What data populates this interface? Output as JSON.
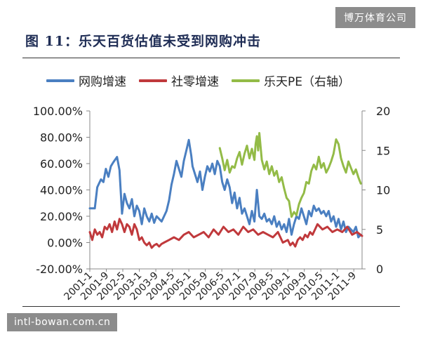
{
  "watermark_top": "博万体育公司",
  "watermark_bottom": "intl-bowan.com.cn",
  "figure_title": "图 11：乐天百货估值未受到网购冲击",
  "chart_data": {
    "type": "line",
    "title": "",
    "legend": [
      {
        "name": "网购增速",
        "color": "#4a7fc1",
        "axis": "left"
      },
      {
        "name": "社零增速",
        "color": "#c0393c",
        "axis": "left"
      },
      {
        "name": "乐天PE（右轴）",
        "color": "#93bb47",
        "axis": "right"
      }
    ],
    "legend_position": "top",
    "grid": false,
    "left_axis": {
      "min": -0.2,
      "max": 1.0,
      "ticks": [
        -0.2,
        0,
        0.2,
        0.4,
        0.6,
        0.8,
        1.0
      ],
      "tick_labels": [
        "-20.00%",
        "0.00%",
        "20.00%",
        "40.00%",
        "60.00%",
        "80.00%",
        "100.00%"
      ]
    },
    "right_axis": {
      "min": 0,
      "max": 20,
      "ticks": [
        0,
        5,
        10,
        15,
        20
      ],
      "tick_labels": [
        "0",
        "5",
        "10",
        "15",
        "20"
      ]
    },
    "x_range": [
      2001.0,
      2012.0
    ],
    "x_ticks": [
      2001.0,
      2001.667,
      2002.333,
      2003.0,
      2003.667,
      2004.333,
      2005.0,
      2005.667,
      2006.333,
      2007.0,
      2007.667,
      2008.333,
      2009.0,
      2009.667,
      2010.333,
      2011.0,
      2011.667
    ],
    "x_tick_labels": [
      "2001-1",
      "2001-9",
      "2002-5",
      "2003-1",
      "2003-9",
      "2004-5",
      "2005-1",
      "2005-9",
      "2006-5",
      "2007-1",
      "2007-9",
      "2008-5",
      "2009-1",
      "2009-9",
      "2010-5",
      "2011-1",
      "2011-9"
    ],
    "series": [
      {
        "name": "网购增速",
        "axis": "left",
        "x": [
          2001.0,
          2001.2,
          2001.3,
          2001.45,
          2001.55,
          2001.65,
          2001.75,
          2001.85,
          2001.95,
          2002.1,
          2002.2,
          2002.3,
          2002.4,
          2002.5,
          2002.6,
          2002.7,
          2002.8,
          2002.9,
          2003.0,
          2003.1,
          2003.2,
          2003.3,
          2003.4,
          2003.5,
          2003.6,
          2003.7,
          2003.8,
          2003.9,
          2004.0,
          2004.1,
          2004.2,
          2004.3,
          2004.4,
          2004.5,
          2004.6,
          2004.7,
          2004.8,
          2004.9,
          2005.0,
          2005.1,
          2005.15,
          2005.25,
          2005.35,
          2005.45,
          2005.55,
          2005.65,
          2005.75,
          2005.85,
          2005.95,
          2006.05,
          2006.15,
          2006.25,
          2006.35,
          2006.45,
          2006.55,
          2006.65,
          2006.75,
          2006.85,
          2006.95,
          2007.05,
          2007.15,
          2007.25,
          2007.35,
          2007.45,
          2007.55,
          2007.65,
          2007.75,
          2007.85,
          2007.95,
          2008.05,
          2008.15,
          2008.25,
          2008.35,
          2008.45,
          2008.55,
          2008.65,
          2008.75,
          2008.85,
          2008.95,
          2009.05,
          2009.15,
          2009.25,
          2009.35,
          2009.45,
          2009.55,
          2009.65,
          2009.75,
          2009.85,
          2009.95,
          2010.05,
          2010.15,
          2010.25,
          2010.35,
          2010.45,
          2010.55,
          2010.65,
          2010.75,
          2010.85,
          2010.95,
          2011.05,
          2011.15,
          2011.25,
          2011.35,
          2011.45,
          2011.55,
          2011.65,
          2011.75,
          2011.85,
          2011.95
        ],
        "values": [
          0.26,
          0.26,
          0.42,
          0.48,
          0.46,
          0.56,
          0.5,
          0.58,
          0.61,
          0.65,
          0.55,
          0.22,
          0.37,
          0.3,
          0.26,
          0.33,
          0.2,
          0.28,
          0.24,
          0.14,
          0.26,
          0.2,
          0.16,
          0.22,
          0.15,
          0.2,
          0.18,
          0.16,
          0.2,
          0.24,
          0.32,
          0.44,
          0.52,
          0.62,
          0.56,
          0.5,
          0.62,
          0.7,
          0.78,
          0.66,
          0.58,
          0.52,
          0.46,
          0.54,
          0.4,
          0.5,
          0.58,
          0.54,
          0.6,
          0.52,
          0.62,
          0.58,
          0.46,
          0.4,
          0.48,
          0.42,
          0.3,
          0.38,
          0.26,
          0.34,
          0.22,
          0.26,
          0.2,
          0.14,
          0.24,
          0.16,
          0.4,
          0.2,
          0.18,
          0.22,
          0.16,
          0.18,
          0.14,
          0.2,
          0.12,
          0.16,
          0.1,
          0.14,
          0.08,
          0.18,
          0.06,
          0.14,
          0.2,
          0.18,
          0.26,
          0.2,
          0.14,
          0.24,
          0.2,
          0.28,
          0.24,
          0.26,
          0.22,
          0.24,
          0.2,
          0.24,
          0.16,
          0.2,
          0.12,
          0.18,
          0.1,
          0.16,
          0.08,
          0.12,
          0.1,
          0.08,
          0.12,
          0.04,
          0.06
        ]
      },
      {
        "name": "社零增速",
        "axis": "left",
        "x": [
          2001.0,
          2001.1,
          2001.2,
          2001.3,
          2001.4,
          2001.5,
          2001.6,
          2001.7,
          2001.8,
          2001.9,
          2002.0,
          2002.1,
          2002.2,
          2002.3,
          2002.4,
          2002.5,
          2002.6,
          2002.7,
          2002.8,
          2002.9,
          2003.0,
          2003.1,
          2003.2,
          2003.3,
          2003.4,
          2003.5,
          2003.6,
          2003.7,
          2003.8,
          2003.9,
          2004.0,
          2004.2,
          2004.4,
          2004.6,
          2004.8,
          2005.0,
          2005.2,
          2005.4,
          2005.6,
          2005.8,
          2006.0,
          2006.2,
          2006.4,
          2006.6,
          2006.8,
          2007.0,
          2007.2,
          2007.4,
          2007.6,
          2007.8,
          2008.0,
          2008.2,
          2008.4,
          2008.6,
          2008.8,
          2009.0,
          2009.1,
          2009.2,
          2009.3,
          2009.4,
          2009.5,
          2009.6,
          2009.7,
          2009.8,
          2009.9,
          2010.0,
          2010.2,
          2010.4,
          2010.6,
          2010.8,
          2011.0,
          2011.2,
          2011.4,
          2011.6,
          2011.8,
          2012.0
        ],
        "values": [
          0.08,
          0.02,
          0.1,
          0.06,
          0.08,
          0.04,
          0.12,
          0.1,
          0.14,
          0.08,
          0.16,
          0.1,
          0.18,
          0.14,
          0.08,
          0.14,
          0.12,
          0.06,
          0.14,
          0.1,
          0.02,
          0.04,
          0.0,
          -0.02,
          0.0,
          -0.04,
          -0.02,
          -0.01,
          -0.03,
          -0.01,
          0.0,
          0.02,
          0.04,
          0.02,
          0.06,
          0.08,
          0.04,
          0.06,
          0.08,
          0.04,
          0.1,
          0.06,
          0.12,
          0.08,
          0.1,
          0.06,
          0.12,
          0.08,
          0.1,
          0.06,
          0.08,
          0.06,
          0.04,
          0.08,
          0.0,
          0.02,
          -0.02,
          0.0,
          -0.03,
          0.02,
          0.04,
          0.02,
          0.06,
          0.04,
          0.08,
          0.06,
          0.14,
          0.1,
          0.12,
          0.08,
          0.1,
          0.08,
          0.12,
          0.06,
          0.08,
          0.05
        ]
      },
      {
        "name": "乐天PE（右轴）",
        "axis": "right",
        "x": [
          2006.25,
          2006.35,
          2006.45,
          2006.55,
          2006.65,
          2006.75,
          2006.85,
          2006.95,
          2007.05,
          2007.15,
          2007.25,
          2007.35,
          2007.45,
          2007.55,
          2007.65,
          2007.7,
          2007.75,
          2007.8,
          2007.85,
          2007.95,
          2008.05,
          2008.15,
          2008.25,
          2008.35,
          2008.45,
          2008.55,
          2008.65,
          2008.75,
          2008.85,
          2008.95,
          2009.05,
          2009.15,
          2009.25,
          2009.35,
          2009.45,
          2009.55,
          2009.65,
          2009.75,
          2009.85,
          2009.95,
          2010.05,
          2010.15,
          2010.25,
          2010.35,
          2010.45,
          2010.55,
          2010.65,
          2010.75,
          2010.85,
          2010.95,
          2011.05,
          2011.15,
          2011.25,
          2011.35,
          2011.45,
          2011.55,
          2011.65,
          2011.75,
          2011.85,
          2011.95
        ],
        "values": [
          15.3,
          14.0,
          12.5,
          13.8,
          12.2,
          13.0,
          12.8,
          14.0,
          14.8,
          13.2,
          14.6,
          15.6,
          14.0,
          15.2,
          13.8,
          15.8,
          16.8,
          15.0,
          17.2,
          13.8,
          12.6,
          13.6,
          12.0,
          13.0,
          11.8,
          12.4,
          11.0,
          11.6,
          10.2,
          9.0,
          8.6,
          6.6,
          7.2,
          6.8,
          8.2,
          9.0,
          9.6,
          11.0,
          10.8,
          12.4,
          13.2,
          12.6,
          14.2,
          12.8,
          13.4,
          12.2,
          12.8,
          13.6,
          14.6,
          16.4,
          15.8,
          14.0,
          13.0,
          12.2,
          13.6,
          12.8,
          12.0,
          12.6,
          11.6,
          10.8
        ]
      }
    ]
  }
}
